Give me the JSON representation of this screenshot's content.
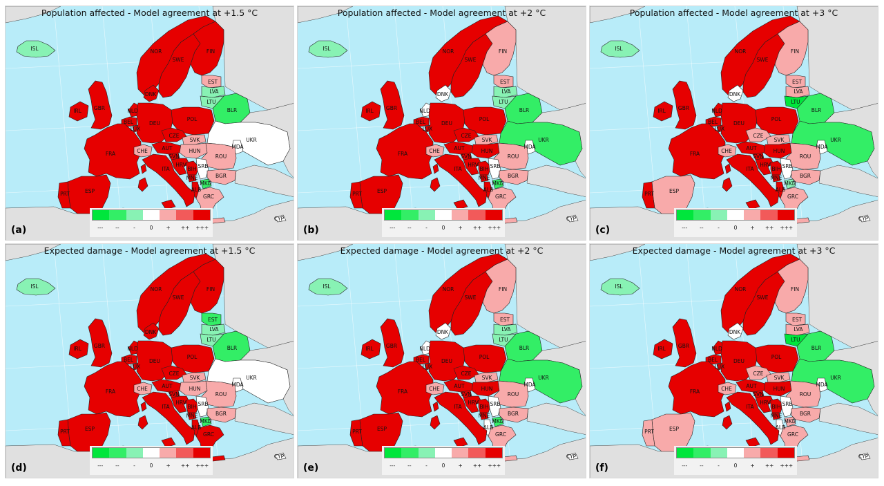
{
  "legend": {
    "ticks": [
      "---",
      "--",
      "-",
      "0",
      "+",
      "++",
      "+++"
    ],
    "colors": [
      "#00e63c",
      "#33ee66",
      "#88f2b4",
      "#ffffff",
      "#f8aaaa",
      "#f25a5a",
      "#e60000"
    ]
  },
  "colors": {
    "sea": "#b8ecf9",
    "land_background": "#e0e0e0",
    "positive_strong": "#e60000",
    "positive_weak": "#f8aaaa",
    "neutral": "#ffffff",
    "negative_weak": "#88f2b4",
    "negative_strong": "#00e63c"
  },
  "panels": [
    {
      "letter": "(a)",
      "title": "Population affected - Model agreement at +1.5 °C",
      "agreement": {
        "ISL": "-",
        "NOR": "+++",
        "SWE": "+++",
        "FIN": "+++",
        "EST": "+",
        "LVA": "-",
        "LTU": "-",
        "BLR": "--",
        "DNK": "+++",
        "GBR": "+++",
        "IRL": "+++",
        "NLD": "+++",
        "BEL": "+++",
        "LUX": "+++",
        "DEU": "+++",
        "POL": "+++",
        "CZE": "+++",
        "SVK": "+",
        "UKR": "0",
        "FRA": "+++",
        "CHE": "+",
        "AUT": "+++",
        "HUN": "+",
        "MDA": "0",
        "ROU": "+",
        "SVN": "+++",
        "HRV": "+++",
        "BIH": "+++",
        "SRB": "0",
        "BGR": "+",
        "MNE": "+++",
        "MKD": "--",
        "ALB": "+++",
        "GRC": "+",
        "ITA": "+++",
        "ESP": "+++",
        "PRT": "+++",
        "CYP": "0"
      }
    },
    {
      "letter": "(b)",
      "title": "Population affected - Model agreement at +2 °C",
      "agreement": {
        "ISL": "-",
        "NOR": "+++",
        "SWE": "+++",
        "FIN": "+",
        "EST": "+",
        "LVA": "-",
        "LTU": "-",
        "BLR": "--",
        "DNK": "0",
        "GBR": "+++",
        "IRL": "+++",
        "NLD": "0",
        "BEL": "+++",
        "LUX": "+++",
        "DEU": "+++",
        "POL": "+++",
        "CZE": "+++",
        "SVK": "+",
        "UKR": "--",
        "FRA": "+++",
        "CHE": "+",
        "AUT": "+++",
        "HUN": "+++",
        "MDA": "0",
        "ROU": "+",
        "SVN": "+++",
        "HRV": "+++",
        "BIH": "+++",
        "SRB": "0",
        "BGR": "+",
        "MNE": "+++",
        "MKD": "--",
        "ALB": "+++",
        "GRC": "+",
        "ITA": "+++",
        "ESP": "+++",
        "PRT": "+++",
        "CYP": "0"
      }
    },
    {
      "letter": "(c)",
      "title": "Population affected - Model agreement at +3 °C",
      "agreement": {
        "ISL": "-",
        "NOR": "+++",
        "SWE": "+++",
        "FIN": "+",
        "EST": "+",
        "LVA": "+",
        "LTU": "---",
        "BLR": "--",
        "DNK": "0",
        "GBR": "+++",
        "IRL": "+++",
        "NLD": "+++",
        "BEL": "+++",
        "LUX": "+++",
        "DEU": "+++",
        "POL": "+++",
        "CZE": "+",
        "SVK": "+",
        "UKR": "--",
        "FRA": "+++",
        "CHE": "+",
        "AUT": "+++",
        "HUN": "+++",
        "MDA": "0",
        "ROU": "+",
        "SVN": "+++",
        "HRV": "+++",
        "BIH": "+++",
        "SRB": "0",
        "BGR": "+",
        "MNE": "+++",
        "MKD": "-",
        "ALB": "+++",
        "GRC": "+",
        "ITA": "+++",
        "ESP": "+",
        "PRT": "+++",
        "CYP": "0"
      }
    },
    {
      "letter": "(d)",
      "title": "Expected damage - Model agreement at +1.5 °C",
      "agreement": {
        "ISL": "-",
        "NOR": "+++",
        "SWE": "+++",
        "FIN": "+++",
        "EST": "--",
        "LVA": "-",
        "LTU": "-",
        "BLR": "--",
        "DNK": "+++",
        "GBR": "+++",
        "IRL": "+++",
        "NLD": "+++",
        "BEL": "+++",
        "LUX": "+++",
        "DEU": "+++",
        "POL": "+++",
        "CZE": "+++",
        "SVK": "+",
        "UKR": "0",
        "FRA": "+++",
        "CHE": "+",
        "AUT": "+++",
        "HUN": "+",
        "MDA": "0",
        "ROU": "+",
        "SVN": "+++",
        "HRV": "+++",
        "BIH": "+++",
        "SRB": "0",
        "BGR": "+",
        "MNE": "+++",
        "MKD": "--",
        "ALB": "+++",
        "GRC": "+++",
        "ITA": "+++",
        "ESP": "+++",
        "PRT": "+++",
        "CYP": "0"
      }
    },
    {
      "letter": "(e)",
      "title": "Expected damage - Model agreement at +2 °C",
      "agreement": {
        "ISL": "-",
        "NOR": "+++",
        "SWE": "+++",
        "FIN": "+",
        "EST": "+",
        "LVA": "-",
        "LTU": "-",
        "BLR": "--",
        "DNK": "0",
        "GBR": "+++",
        "IRL": "+++",
        "NLD": "0",
        "BEL": "+++",
        "LUX": "+++",
        "DEU": "+++",
        "POL": "+++",
        "CZE": "+++",
        "SVK": "+",
        "UKR": "--",
        "FRA": "+++",
        "CHE": "+",
        "AUT": "+++",
        "HUN": "+++",
        "MDA": "0",
        "ROU": "+",
        "SVN": "+++",
        "HRV": "+++",
        "BIH": "+++",
        "SRB": "0",
        "BGR": "+",
        "MNE": "+++",
        "MKD": "--",
        "ALB": "0",
        "GRC": "+",
        "ITA": "+++",
        "ESP": "+++",
        "PRT": "+++",
        "CYP": "0"
      }
    },
    {
      "letter": "(f)",
      "title": "Expected damage - Model agreement at +3 °C",
      "agreement": {
        "ISL": "-",
        "NOR": "+++",
        "SWE": "+++",
        "FIN": "+",
        "EST": "+",
        "LVA": "+",
        "LTU": "---",
        "BLR": "--",
        "DNK": "0",
        "GBR": "+++",
        "IRL": "+++",
        "NLD": "+++",
        "BEL": "+++",
        "LUX": "+++",
        "DEU": "+++",
        "POL": "+++",
        "CZE": "+",
        "SVK": "+",
        "UKR": "--",
        "FRA": "+++",
        "CHE": "+",
        "AUT": "+++",
        "HUN": "+++",
        "MDA": "0",
        "ROU": "+",
        "SVN": "+++",
        "HRV": "+++",
        "BIH": "+++",
        "SRB": "0",
        "BGR": "+",
        "MNE": "+++",
        "MKD": "+",
        "ALB": "0",
        "GRC": "+",
        "ITA": "+++",
        "ESP": "+",
        "PRT": "+",
        "CYP": "0"
      }
    }
  ]
}
